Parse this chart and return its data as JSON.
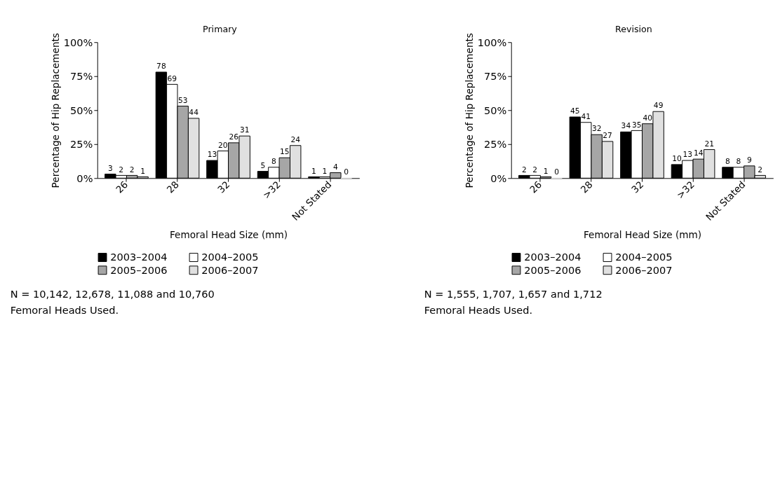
{
  "chart_data": [
    {
      "type": "bar",
      "title": "Primary",
      "xlabel": "Femoral Head Size (mm)",
      "ylabel": "Percentage of Hip Replacements",
      "categories": [
        "26",
        "28",
        "32",
        ">32",
        "Not Stated"
      ],
      "series": [
        {
          "name": "2003–2004",
          "color": "#000000",
          "values": [
            3,
            78,
            13,
            5,
            1
          ]
        },
        {
          "name": "2004–2005",
          "color": "#ffffff",
          "values": [
            2,
            69,
            20,
            8,
            1
          ]
        },
        {
          "name": "2005–2006",
          "color": "#a6a6a6",
          "values": [
            2,
            53,
            26,
            15,
            4
          ]
        },
        {
          "name": "2006–2007",
          "color": "#e0e0e0",
          "values": [
            1,
            44,
            31,
            24,
            0
          ]
        }
      ],
      "ylim": [
        0,
        100
      ],
      "yticks": [
        {
          "value": 0,
          "label": "0%"
        },
        {
          "value": 25,
          "label": "25%"
        },
        {
          "value": 50,
          "label": "50%"
        },
        {
          "value": 75,
          "label": "75%"
        },
        {
          "value": 100,
          "label": "100%"
        }
      ],
      "data_labels": true,
      "legend": "bottom",
      "grid": false,
      "annotations": [
        "N = 10,142, 12,678, 11,088 and 10,760\n   Femoral Heads Used."
      ]
    },
    {
      "type": "bar",
      "title": "Revision",
      "xlabel": "Femoral Head Size (mm)",
      "ylabel": "Percentage of Hip Replacements",
      "categories": [
        "26",
        "28",
        "32",
        ">32",
        "Not Stated"
      ],
      "series": [
        {
          "name": "2003–2004",
          "color": "#000000",
          "values": [
            2,
            45,
            34,
            10,
            8
          ]
        },
        {
          "name": "2004–2005",
          "color": "#ffffff",
          "values": [
            2,
            41,
            35,
            13,
            8
          ]
        },
        {
          "name": "2005–2006",
          "color": "#a6a6a6",
          "values": [
            1,
            32,
            40,
            14,
            9
          ]
        },
        {
          "name": "2006–2007",
          "color": "#e0e0e0",
          "values": [
            0,
            27,
            49,
            21,
            2
          ]
        }
      ],
      "ylim": [
        0,
        100
      ],
      "yticks": [
        {
          "value": 0,
          "label": "0%"
        },
        {
          "value": 25,
          "label": "25%"
        },
        {
          "value": 50,
          "label": "50%"
        },
        {
          "value": 75,
          "label": "75%"
        },
        {
          "value": 100,
          "label": "100%"
        }
      ],
      "data_labels": true,
      "legend": "bottom",
      "grid": false,
      "annotations": [
        "N = 1,555, 1,707, 1,657 and 1,712\n   Femoral Heads Used."
      ]
    }
  ]
}
